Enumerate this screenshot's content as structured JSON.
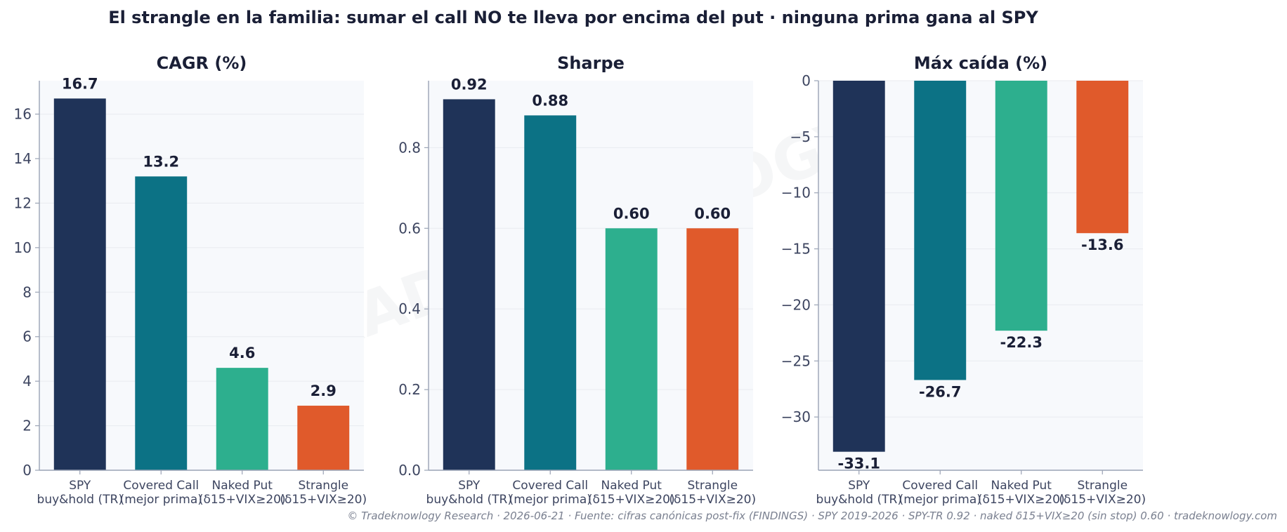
{
  "suptitle": "El strangle en la familia: sumar el call NO te lleva por encima del put · ninguna prima gana al SPY",
  "watermark": "TRADEKNOWLOGY",
  "footer": "© Tradeknowlogy Research   ·   2026-06-21   ·   Fuente: cifras canónicas post-fix (FINDINGS) · SPY 2019-2026 · SPY-TR 0.92 · naked δ15+VIX≥20 (sin stop) 0.60   ·   tradeknowlogy.com",
  "colors": {
    "bars": [
      "#1f3358",
      "#0c7285",
      "#2daf8e",
      "#e05a2b"
    ],
    "panel_bg": "#f7f9fc",
    "grid": "#e8ebf0",
    "axis": "#9aa3b5"
  },
  "chart_data": [
    {
      "type": "bar",
      "title": "CAGR (%)",
      "categories": [
        "SPY\nbuy&hold (TR)",
        "Covered Call\n(mejor prima)",
        "Naked Put\n(δ15+VIX≥20)",
        "Strangle\n(δ15+VIX≥20)"
      ],
      "values": [
        16.7,
        13.2,
        4.6,
        2.9
      ],
      "data_labels": [
        "16.7",
        "13.2",
        "4.6",
        "2.9"
      ],
      "ylim": [
        0,
        17.5
      ],
      "yticks": [
        0,
        2,
        4,
        6,
        8,
        10,
        12,
        14,
        16
      ],
      "ytick_labels": [
        "0",
        "2",
        "4",
        "6",
        "8",
        "10",
        "12",
        "14",
        "16"
      ],
      "grid": true
    },
    {
      "type": "bar",
      "title": "Sharpe",
      "categories": [
        "SPY\nbuy&hold (TR)",
        "Covered Call\n(mejor prima)",
        "Naked Put\n(δ15+VIX≥20)",
        "Strangle\n(δ15+VIX≥20)"
      ],
      "values": [
        0.92,
        0.88,
        0.6,
        0.6
      ],
      "data_labels": [
        "0.92",
        "0.88",
        "0.60",
        "0.60"
      ],
      "ylim": [
        0,
        0.966
      ],
      "yticks": [
        0,
        0.2,
        0.4,
        0.6,
        0.8
      ],
      "ytick_labels": [
        "0.0",
        "0.2",
        "0.4",
        "0.6",
        "0.8"
      ],
      "grid": true
    },
    {
      "type": "bar",
      "title": "Máx caída (%)",
      "categories": [
        "SPY\nbuy&hold (TR)",
        "Covered Call\n(mejor prima)",
        "Naked Put\n(δ15+VIX≥20)",
        "Strangle\n(δ15+VIX≥20)"
      ],
      "values": [
        -33.1,
        -26.7,
        -22.3,
        -13.6
      ],
      "data_labels": [
        "-33.1",
        "-26.7",
        "-22.3",
        "-13.6"
      ],
      "ylim": [
        -34.75,
        0
      ],
      "yticks": [
        0,
        -5,
        -10,
        -15,
        -20,
        -25,
        -30
      ],
      "ytick_labels": [
        "0",
        "−5",
        "−10",
        "−15",
        "−20",
        "−25",
        "−30"
      ],
      "grid": true
    }
  ]
}
